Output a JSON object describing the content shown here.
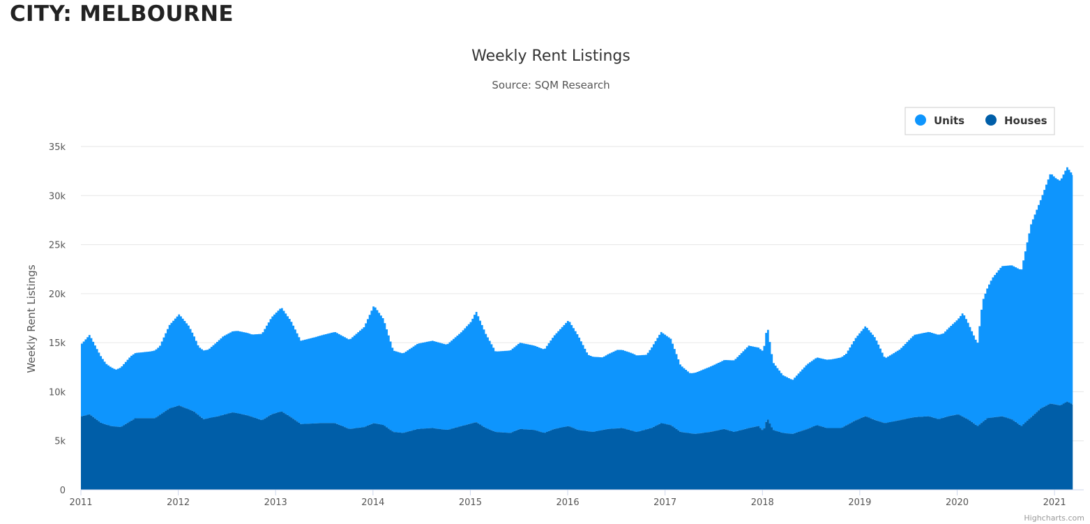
{
  "page": {
    "heading": "CITY: MELBOURNE"
  },
  "chart_data": {
    "type": "area",
    "stacked": true,
    "title": "Weekly Rent Listings",
    "subtitle": "Source: SQM Research",
    "xlabel": "",
    "ylabel": "Weekly Rent Listings",
    "ylim": [
      0,
      35000
    ],
    "xlim": [
      2011.0,
      2021.3
    ],
    "yticks": [
      0,
      5000,
      10000,
      15000,
      20000,
      25000,
      30000,
      35000
    ],
    "ytick_labels": [
      "0",
      "5k",
      "10k",
      "15k",
      "20k",
      "25k",
      "30k",
      "35k"
    ],
    "xticks": [
      2011,
      2012,
      2013,
      2014,
      2015,
      2016,
      2017,
      2018,
      2019,
      2020,
      2021
    ],
    "xtick_labels": [
      "2011",
      "2012",
      "2013",
      "2014",
      "2015",
      "2016",
      "2017",
      "2018",
      "2019",
      "2020",
      "2021"
    ],
    "grid": true,
    "legend": "top-right",
    "credit": "Highcharts.com",
    "series": [
      {
        "name": "Houses",
        "color": "#005ea8",
        "points": [
          [
            2011.0,
            7500
          ],
          [
            2011.08,
            7700
          ],
          [
            2011.2,
            6800
          ],
          [
            2011.3,
            6500
          ],
          [
            2011.4,
            6400
          ],
          [
            2011.55,
            7300
          ],
          [
            2011.75,
            7300
          ],
          [
            2011.9,
            8300
          ],
          [
            2012.0,
            8600
          ],
          [
            2012.15,
            8000
          ],
          [
            2012.25,
            7200
          ],
          [
            2012.4,
            7500
          ],
          [
            2012.55,
            7900
          ],
          [
            2012.7,
            7600
          ],
          [
            2012.85,
            7100
          ],
          [
            2012.95,
            7700
          ],
          [
            2013.05,
            8000
          ],
          [
            2013.15,
            7400
          ],
          [
            2013.25,
            6700
          ],
          [
            2013.45,
            6800
          ],
          [
            2013.6,
            6800
          ],
          [
            2013.75,
            6200
          ],
          [
            2013.9,
            6400
          ],
          [
            2014.0,
            6800
          ],
          [
            2014.1,
            6600
          ],
          [
            2014.2,
            5900
          ],
          [
            2014.3,
            5800
          ],
          [
            2014.45,
            6200
          ],
          [
            2014.6,
            6300
          ],
          [
            2014.75,
            6100
          ],
          [
            2014.9,
            6500
          ],
          [
            2015.05,
            6900
          ],
          [
            2015.15,
            6300
          ],
          [
            2015.25,
            5900
          ],
          [
            2015.4,
            5800
          ],
          [
            2015.5,
            6200
          ],
          [
            2015.65,
            6100
          ],
          [
            2015.75,
            5800
          ],
          [
            2015.85,
            6200
          ],
          [
            2016.0,
            6500
          ],
          [
            2016.1,
            6100
          ],
          [
            2016.25,
            5900
          ],
          [
            2016.4,
            6200
          ],
          [
            2016.55,
            6300
          ],
          [
            2016.7,
            5900
          ],
          [
            2016.85,
            6300
          ],
          [
            2016.95,
            6800
          ],
          [
            2017.05,
            6600
          ],
          [
            2017.15,
            5900
          ],
          [
            2017.3,
            5700
          ],
          [
            2017.45,
            5900
          ],
          [
            2017.6,
            6200
          ],
          [
            2017.7,
            5900
          ],
          [
            2017.85,
            6300
          ],
          [
            2017.95,
            6500
          ],
          [
            2018.0,
            6000
          ],
          [
            2018.04,
            7300
          ],
          [
            2018.1,
            6100
          ],
          [
            2018.2,
            5800
          ],
          [
            2018.3,
            5700
          ],
          [
            2018.45,
            6200
          ],
          [
            2018.55,
            6600
          ],
          [
            2018.65,
            6300
          ],
          [
            2018.8,
            6300
          ],
          [
            2018.95,
            7100
          ],
          [
            2019.05,
            7500
          ],
          [
            2019.15,
            7100
          ],
          [
            2019.25,
            6800
          ],
          [
            2019.4,
            7100
          ],
          [
            2019.55,
            7400
          ],
          [
            2019.7,
            7500
          ],
          [
            2019.8,
            7200
          ],
          [
            2019.9,
            7500
          ],
          [
            2020.0,
            7700
          ],
          [
            2020.1,
            7200
          ],
          [
            2020.2,
            6500
          ],
          [
            2020.3,
            7300
          ],
          [
            2020.45,
            7500
          ],
          [
            2020.55,
            7200
          ],
          [
            2020.65,
            6500
          ],
          [
            2020.75,
            7400
          ],
          [
            2020.85,
            8300
          ],
          [
            2020.95,
            8800
          ],
          [
            2021.05,
            8600
          ],
          [
            2021.12,
            9000
          ],
          [
            2021.18,
            8700
          ]
        ]
      },
      {
        "name": "Units",
        "color": "#0e95fd",
        "points": [
          [
            2011.0,
            7400
          ],
          [
            2011.08,
            8100
          ],
          [
            2011.15,
            7300
          ],
          [
            2011.25,
            6200
          ],
          [
            2011.35,
            5800
          ],
          [
            2011.5,
            6600
          ],
          [
            2011.7,
            6800
          ],
          [
            2011.8,
            7000
          ],
          [
            2011.9,
            8500
          ],
          [
            2012.0,
            9300
          ],
          [
            2012.1,
            8500
          ],
          [
            2012.2,
            7000
          ],
          [
            2012.3,
            7000
          ],
          [
            2012.45,
            8000
          ],
          [
            2012.6,
            8400
          ],
          [
            2012.75,
            8400
          ],
          [
            2012.85,
            8800
          ],
          [
            2012.95,
            9900
          ],
          [
            2013.05,
            10600
          ],
          [
            2013.15,
            9800
          ],
          [
            2013.25,
            8500
          ],
          [
            2013.4,
            8800
          ],
          [
            2013.6,
            9300
          ],
          [
            2013.75,
            9100
          ],
          [
            2013.9,
            10200
          ],
          [
            2014.0,
            12000
          ],
          [
            2014.1,
            10800
          ],
          [
            2014.2,
            8300
          ],
          [
            2014.3,
            8100
          ],
          [
            2014.45,
            8700
          ],
          [
            2014.6,
            8900
          ],
          [
            2014.75,
            8700
          ],
          [
            2014.9,
            9600
          ],
          [
            2015.0,
            10400
          ],
          [
            2015.05,
            11300
          ],
          [
            2015.15,
            9600
          ],
          [
            2015.25,
            8200
          ],
          [
            2015.4,
            8400
          ],
          [
            2015.5,
            8800
          ],
          [
            2015.65,
            8600
          ],
          [
            2015.75,
            8500
          ],
          [
            2015.85,
            9500
          ],
          [
            2016.0,
            10800
          ],
          [
            2016.1,
            9600
          ],
          [
            2016.2,
            7800
          ],
          [
            2016.35,
            7400
          ],
          [
            2016.5,
            8000
          ],
          [
            2016.65,
            7900
          ],
          [
            2016.8,
            7600
          ],
          [
            2016.95,
            9300
          ],
          [
            2017.05,
            8800
          ],
          [
            2017.15,
            6800
          ],
          [
            2017.25,
            6100
          ],
          [
            2017.4,
            6500
          ],
          [
            2017.55,
            6900
          ],
          [
            2017.7,
            7300
          ],
          [
            2017.85,
            8400
          ],
          [
            2017.95,
            8000
          ],
          [
            2018.0,
            8100
          ],
          [
            2018.04,
            9500
          ],
          [
            2018.1,
            6900
          ],
          [
            2018.2,
            5900
          ],
          [
            2018.3,
            5500
          ],
          [
            2018.45,
            6600
          ],
          [
            2018.55,
            6900
          ],
          [
            2018.7,
            7000
          ],
          [
            2018.85,
            7300
          ],
          [
            2018.95,
            8400
          ],
          [
            2019.05,
            9200
          ],
          [
            2019.15,
            8400
          ],
          [
            2019.25,
            6600
          ],
          [
            2019.4,
            7200
          ],
          [
            2019.55,
            8400
          ],
          [
            2019.7,
            8600
          ],
          [
            2019.85,
            8600
          ],
          [
            2020.0,
            9700
          ],
          [
            2020.05,
            10600
          ],
          [
            2020.1,
            9900
          ],
          [
            2020.2,
            8400
          ],
          [
            2020.25,
            12300
          ],
          [
            2020.35,
            14200
          ],
          [
            2020.45,
            15300
          ],
          [
            2020.55,
            15700
          ],
          [
            2020.65,
            15900
          ],
          [
            2020.75,
            19700
          ],
          [
            2020.85,
            21300
          ],
          [
            2020.95,
            23500
          ],
          [
            2021.0,
            23100
          ],
          [
            2021.05,
            22900
          ],
          [
            2021.12,
            23900
          ],
          [
            2021.18,
            23400
          ]
        ]
      }
    ]
  }
}
